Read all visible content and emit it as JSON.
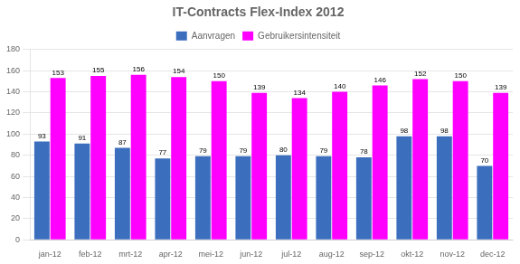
{
  "chart_data": {
    "type": "bar",
    "title": "IT-Contracts Flex-Index 2012",
    "categories": [
      "jan-12",
      "feb-12",
      "mrt-12",
      "apr-12",
      "mei-12",
      "jun-12",
      "jul-12",
      "aug-12",
      "sep-12",
      "okt-12",
      "nov-12",
      "dec-12"
    ],
    "series": [
      {
        "name": "Aanvragen",
        "color": "#3C6EBE",
        "values": [
          93,
          91,
          87,
          77,
          79,
          79,
          80,
          79,
          78,
          98,
          98,
          70
        ]
      },
      {
        "name": "Gebruikersintensiteit",
        "color": "#FF00FF",
        "values": [
          153,
          155,
          156,
          154,
          150,
          139,
          134,
          140,
          146,
          152,
          150,
          139
        ]
      }
    ],
    "ylim": [
      0,
      180
    ],
    "yticks": [
      0,
      20,
      40,
      60,
      80,
      100,
      120,
      140,
      160,
      180
    ],
    "grid": true,
    "legend": "top",
    "data_labels": true
  }
}
